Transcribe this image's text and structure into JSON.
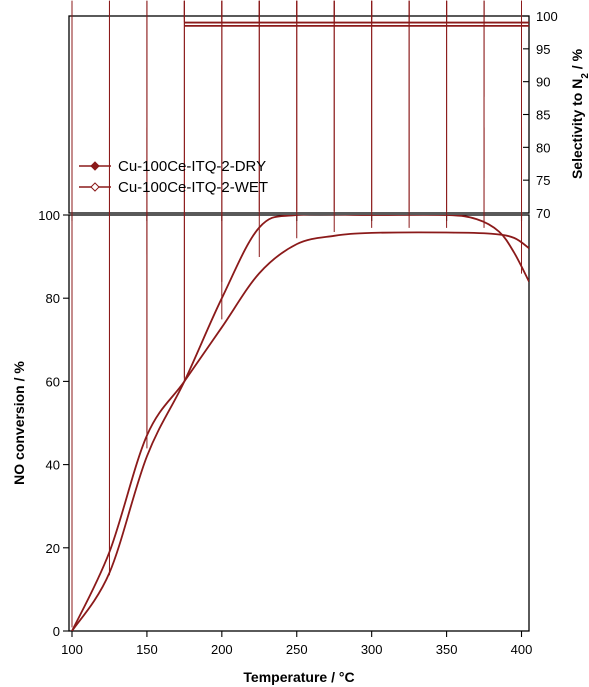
{
  "chart_data": {
    "type": "line",
    "panels": [
      {
        "id": "top",
        "ylabel": "Selectivity to N2 / %",
        "ylabel_main": "Selectivity to N",
        "ylabel_sub": "2",
        "ylabel_tail": " / %",
        "ylim": [
          70,
          100
        ],
        "yticks": [
          70,
          75,
          80,
          85,
          90,
          95,
          100
        ],
        "ytick_labels": [
          "70",
          "75",
          "80",
          "85",
          "90",
          "95",
          "100"
        ],
        "y_axis_side": "right",
        "series": [
          {
            "name": "Cu-100Ce-ITQ-2-DRY",
            "marker": "filled-diamond",
            "color": "#8b1a1a",
            "x": [
              175,
              200,
              225,
              250,
              275,
              300,
              325,
              350,
              375,
              400
            ],
            "y": [
              99,
              99,
              99,
              99,
              99,
              99,
              99,
              99,
              99,
              99
            ]
          },
          {
            "name": "Cu-100Ce-ITQ-2-WET",
            "marker": "open-diamond",
            "color": "#8b1a1a",
            "x": [
              175,
              200,
              225,
              250,
              275,
              300,
              325,
              350,
              375,
              400
            ],
            "y": [
              98.5,
              98.5,
              98.5,
              98.5,
              98.5,
              98.5,
              98.5,
              98.5,
              98.5,
              98.5
            ]
          }
        ]
      },
      {
        "id": "bottom",
        "ylabel": "NO conversion / %",
        "ylim": [
          0,
          100
        ],
        "yticks": [
          0,
          20,
          40,
          60,
          80,
          100
        ],
        "ytick_labels": [
          "0",
          "20",
          "40",
          "60",
          "80",
          "100"
        ],
        "y_axis_side": "left",
        "series": [
          {
            "name": "Cu-100Ce-ITQ-2-DRY",
            "marker": "filled-diamond",
            "color": "#8b1a1a",
            "x": [
              100,
              125,
              150,
              175,
              200,
              225,
              250,
              275,
              300,
              325,
              350,
              375,
              400
            ],
            "y": [
              0,
              12.5,
              43,
              59,
              83,
              100,
              100,
              100,
              100,
              100,
              100,
              100,
              85
            ]
          },
          {
            "name": "Cu-100Ce-ITQ-2-WET",
            "marker": "open-diamond",
            "color": "#8b1a1a",
            "x": [
              100,
              125,
              150,
              175,
              200,
              225,
              250,
              275,
              300,
              325,
              350,
              375,
              400
            ],
            "y": [
              0,
              17.5,
              47,
              60,
              74,
              89,
              93.5,
              95,
              96,
              96,
              96,
              96,
              96
            ]
          }
        ]
      }
    ],
    "xlabel": "Temperature / °C",
    "xlim": [
      98,
      405
    ],
    "xticks": [
      100,
      150,
      200,
      250,
      300,
      350,
      400
    ],
    "xtick_labels": [
      "100",
      "150",
      "200",
      "250",
      "300",
      "350",
      "400"
    ],
    "legend": {
      "placement": "lower-left of top panel",
      "entries": [
        "Cu-100Ce-ITQ-2-DRY",
        "Cu-100Ce-ITQ-2-WET"
      ]
    },
    "grid": false
  }
}
